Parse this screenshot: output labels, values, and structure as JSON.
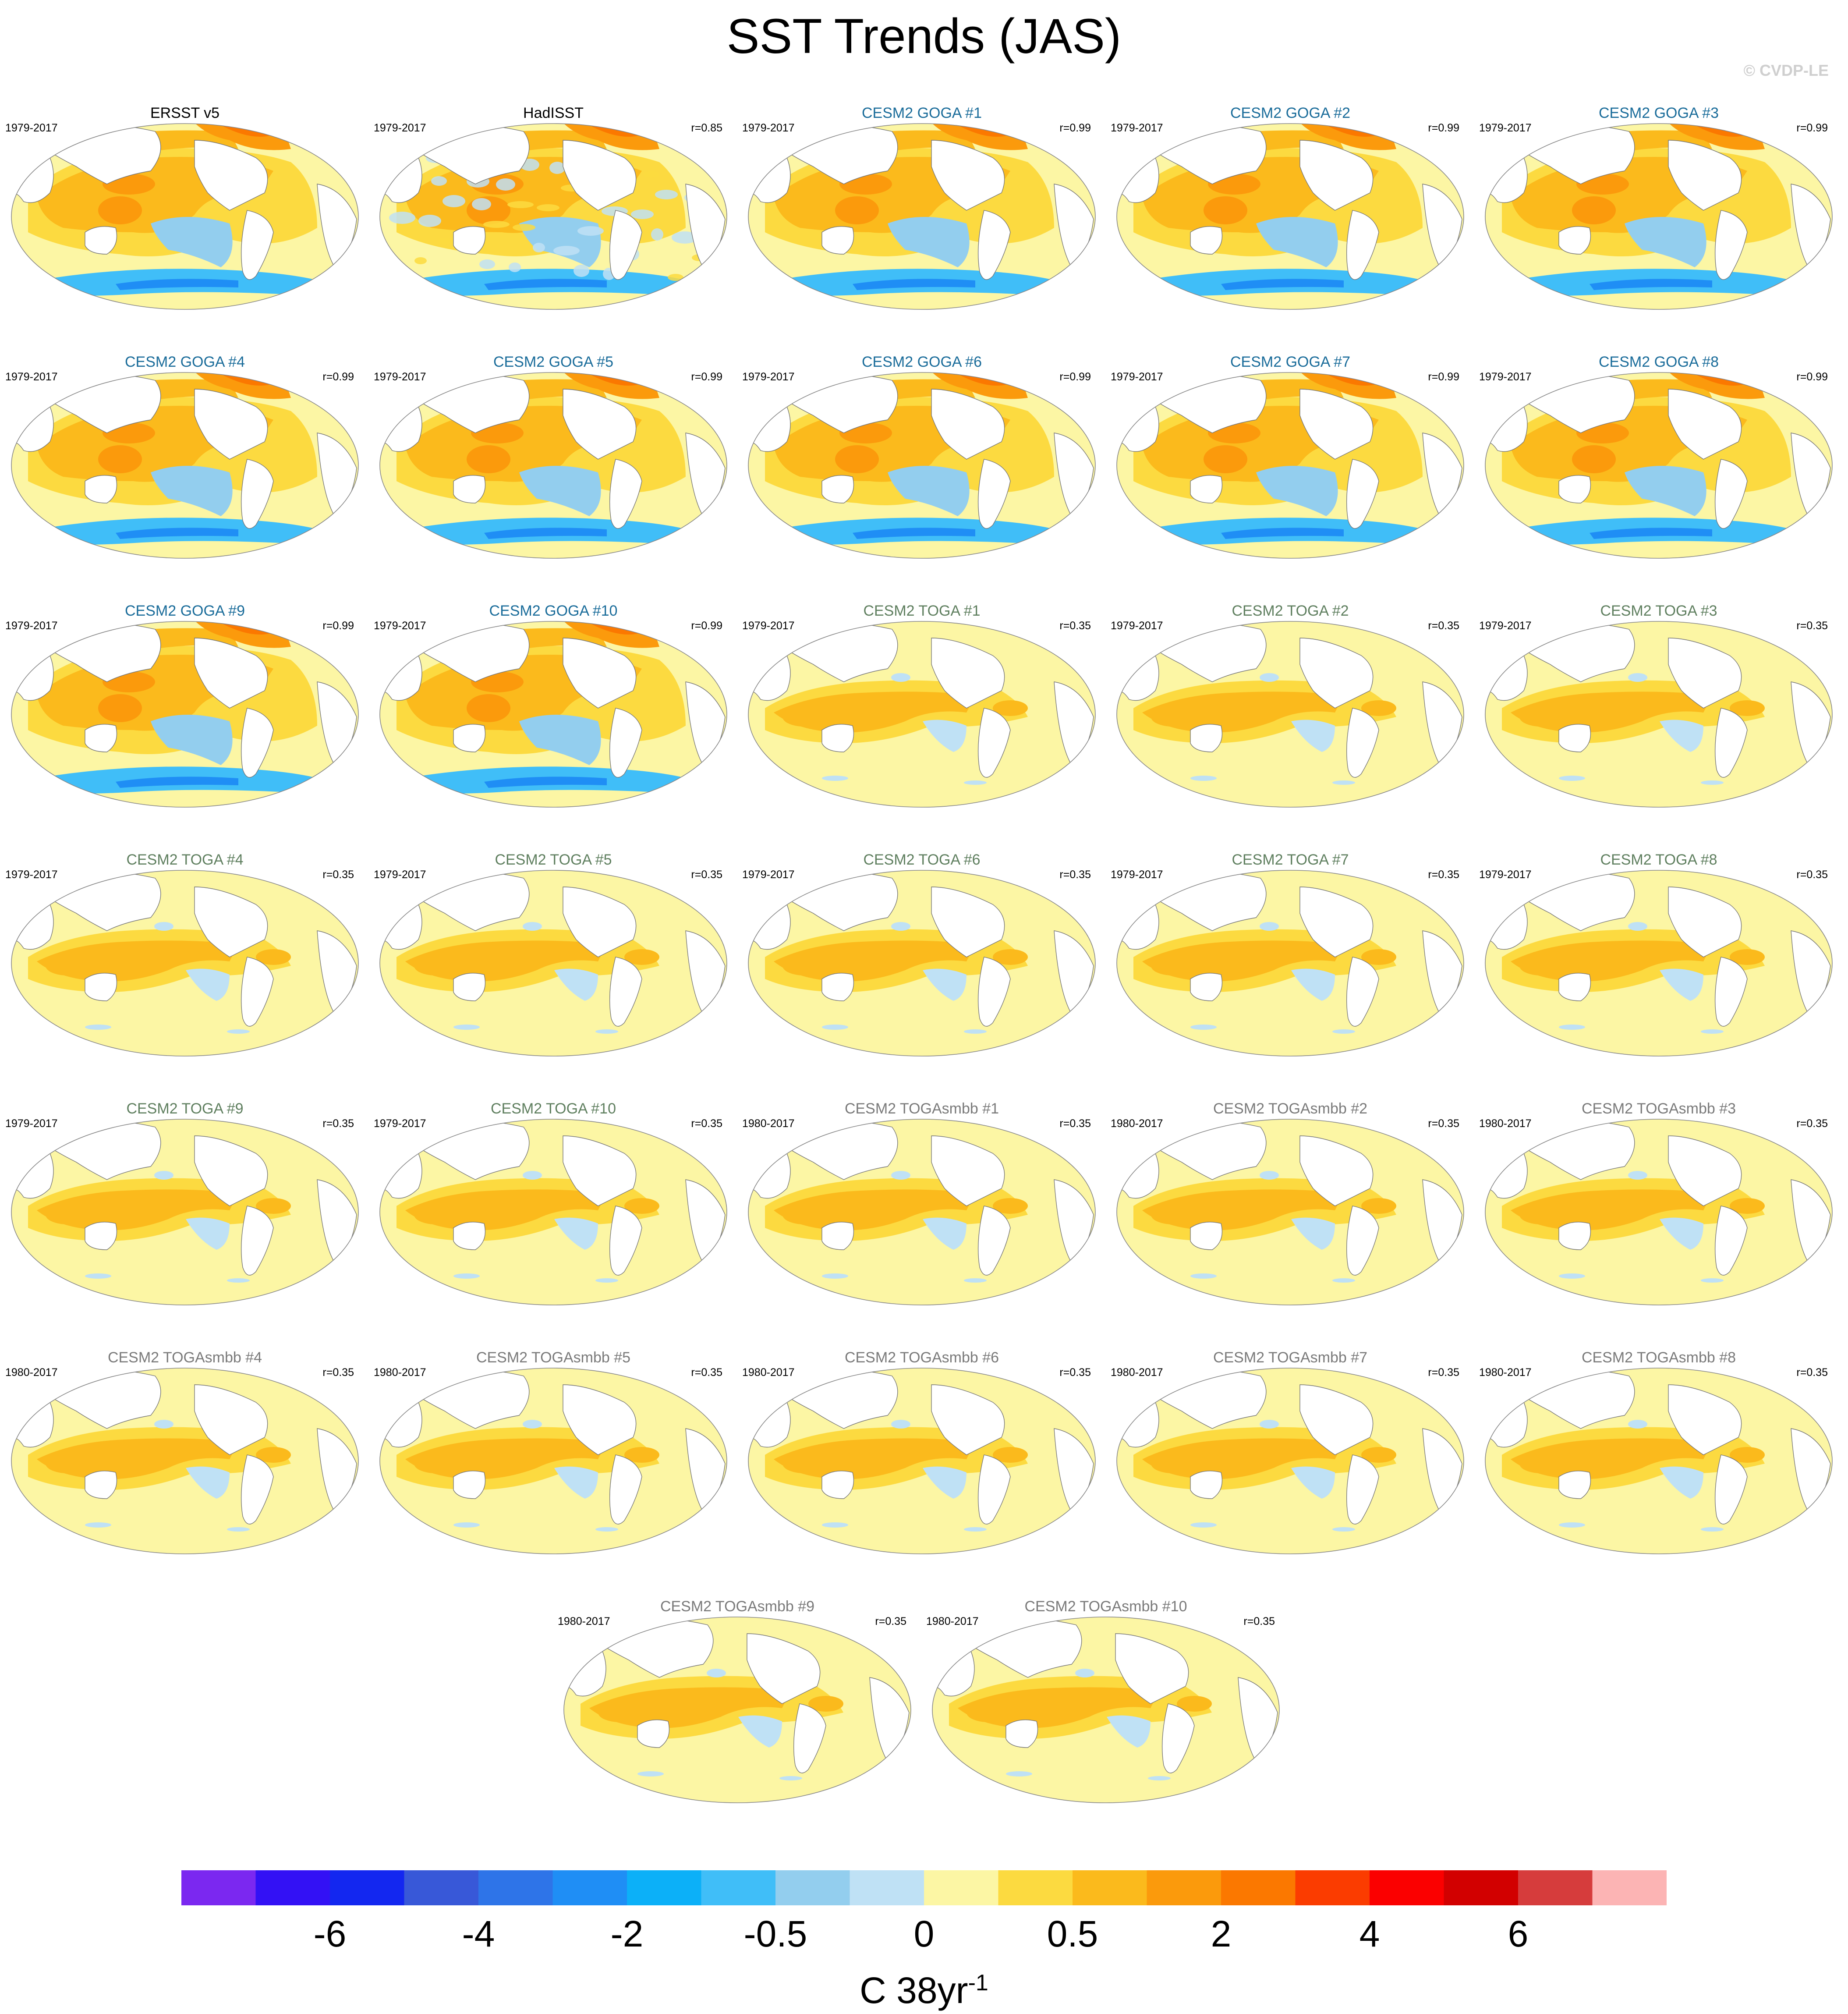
{
  "title": "SST Trends (JAS)",
  "copyright": "© CVDP-LE",
  "units": {
    "base": "C 38yr",
    "exponent": "-1"
  },
  "colorbar": {
    "colors": [
      "#7b28f0",
      "#3311f5",
      "#1327f0",
      "#3858d8",
      "#2e74e8",
      "#1f8ef5",
      "#0cb0f8",
      "#40bef8",
      "#93ceee",
      "#bfe1f5",
      "#fcf6a4",
      "#fcda40",
      "#fbba1c",
      "#fb9a0c",
      "#fb7800",
      "#fb3c00",
      "#fb0000",
      "#d20000",
      "#d63c3c",
      "#fcb4b4"
    ],
    "tick_labels": [
      {
        "text": "-6",
        "boundary": 2
      },
      {
        "text": "-4",
        "boundary": 4
      },
      {
        "text": "-2",
        "boundary": 6
      },
      {
        "text": "-0.5",
        "boundary": 8
      },
      {
        "text": "0",
        "boundary": 10
      },
      {
        "text": "0.5",
        "boundary": 12
      },
      {
        "text": "2",
        "boundary": 14
      },
      {
        "text": "4",
        "boundary": 16
      },
      {
        "text": "6",
        "boundary": 18
      }
    ]
  },
  "panels": [
    {
      "title": "ERSST v5",
      "years": "1979-2017",
      "r": "",
      "group": "obs",
      "pattern": "goga"
    },
    {
      "title": "HadISST",
      "years": "1979-2017",
      "r": "r=0.85",
      "group": "obs",
      "pattern": "hadisst"
    },
    {
      "title": "CESM2 GOGA #1",
      "years": "1979-2017",
      "r": "r=0.99",
      "group": "goga",
      "pattern": "goga"
    },
    {
      "title": "CESM2 GOGA #2",
      "years": "1979-2017",
      "r": "r=0.99",
      "group": "goga",
      "pattern": "goga"
    },
    {
      "title": "CESM2 GOGA #3",
      "years": "1979-2017",
      "r": "r=0.99",
      "group": "goga",
      "pattern": "goga"
    },
    {
      "title": "CESM2 GOGA #4",
      "years": "1979-2017",
      "r": "r=0.99",
      "group": "goga",
      "pattern": "goga"
    },
    {
      "title": "CESM2 GOGA #5",
      "years": "1979-2017",
      "r": "r=0.99",
      "group": "goga",
      "pattern": "goga"
    },
    {
      "title": "CESM2 GOGA #6",
      "years": "1979-2017",
      "r": "r=0.99",
      "group": "goga",
      "pattern": "goga"
    },
    {
      "title": "CESM2 GOGA #7",
      "years": "1979-2017",
      "r": "r=0.99",
      "group": "goga",
      "pattern": "goga"
    },
    {
      "title": "CESM2 GOGA #8",
      "years": "1979-2017",
      "r": "r=0.99",
      "group": "goga",
      "pattern": "goga"
    },
    {
      "title": "CESM2 GOGA #9",
      "years": "1979-2017",
      "r": "r=0.99",
      "group": "goga",
      "pattern": "goga"
    },
    {
      "title": "CESM2 GOGA #10",
      "years": "1979-2017",
      "r": "r=0.99",
      "group": "goga",
      "pattern": "goga"
    },
    {
      "title": "CESM2 TOGA #1",
      "years": "1979-2017",
      "r": "r=0.35",
      "group": "toga",
      "pattern": "toga"
    },
    {
      "title": "CESM2 TOGA #2",
      "years": "1979-2017",
      "r": "r=0.35",
      "group": "toga",
      "pattern": "toga"
    },
    {
      "title": "CESM2 TOGA #3",
      "years": "1979-2017",
      "r": "r=0.35",
      "group": "toga",
      "pattern": "toga"
    },
    {
      "title": "CESM2 TOGA #4",
      "years": "1979-2017",
      "r": "r=0.35",
      "group": "toga",
      "pattern": "toga"
    },
    {
      "title": "CESM2 TOGA #5",
      "years": "1979-2017",
      "r": "r=0.35",
      "group": "toga",
      "pattern": "toga"
    },
    {
      "title": "CESM2 TOGA #6",
      "years": "1979-2017",
      "r": "r=0.35",
      "group": "toga",
      "pattern": "toga"
    },
    {
      "title": "CESM2 TOGA #7",
      "years": "1979-2017",
      "r": "r=0.35",
      "group": "toga",
      "pattern": "toga"
    },
    {
      "title": "CESM2 TOGA #8",
      "years": "1979-2017",
      "r": "r=0.35",
      "group": "toga",
      "pattern": "toga"
    },
    {
      "title": "CESM2 TOGA #9",
      "years": "1979-2017",
      "r": "r=0.35",
      "group": "toga",
      "pattern": "toga"
    },
    {
      "title": "CESM2 TOGA #10",
      "years": "1979-2017",
      "r": "r=0.35",
      "group": "toga",
      "pattern": "toga"
    },
    {
      "title": "CESM2 TOGAsmbb #1",
      "years": "1980-2017",
      "r": "r=0.35",
      "group": "smbb",
      "pattern": "toga"
    },
    {
      "title": "CESM2 TOGAsmbb #2",
      "years": "1980-2017",
      "r": "r=0.35",
      "group": "smbb",
      "pattern": "toga"
    },
    {
      "title": "CESM2 TOGAsmbb #3",
      "years": "1980-2017",
      "r": "r=0.35",
      "group": "smbb",
      "pattern": "toga"
    },
    {
      "title": "CESM2 TOGAsmbb #4",
      "years": "1980-2017",
      "r": "r=0.35",
      "group": "smbb",
      "pattern": "toga"
    },
    {
      "title": "CESM2 TOGAsmbb #5",
      "years": "1980-2017",
      "r": "r=0.35",
      "group": "smbb",
      "pattern": "toga"
    },
    {
      "title": "CESM2 TOGAsmbb #6",
      "years": "1980-2017",
      "r": "r=0.35",
      "group": "smbb",
      "pattern": "toga"
    },
    {
      "title": "CESM2 TOGAsmbb #7",
      "years": "1980-2017",
      "r": "r=0.35",
      "group": "smbb",
      "pattern": "toga"
    },
    {
      "title": "CESM2 TOGAsmbb #8",
      "years": "1980-2017",
      "r": "r=0.35",
      "group": "smbb",
      "pattern": "toga"
    },
    {
      "title": "CESM2 TOGAsmbb #9",
      "years": "1980-2017",
      "r": "r=0.35",
      "group": "smbb",
      "pattern": "toga"
    },
    {
      "title": "CESM2 TOGAsmbb #10",
      "years": "1980-2017",
      "r": "r=0.35",
      "group": "smbb",
      "pattern": "toga"
    }
  ]
}
